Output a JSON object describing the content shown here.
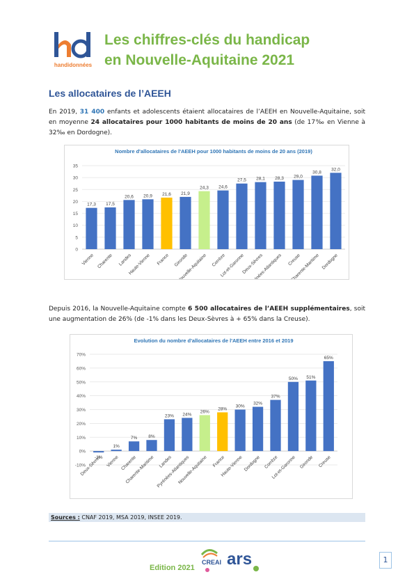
{
  "header": {
    "logo_text": "handidonnées",
    "title_lines": [
      "Les chiffres-clés du handicap",
      "en Nouvelle-Aquitaine 2021"
    ]
  },
  "section": {
    "heading": "Les allocataires de l’AEEH"
  },
  "paragraphs": [
    [
      "En 2019, ",
      "31 400",
      " enfants et adolescents étaient allocataires de l’AEEH en Nouvelle-Aquitaine, soit en moyenne ",
      "24 allocataires pour 1000 habitants de moins de 20 ans",
      " (de 17‰ en Vienne à 32‰ en Dordogne)."
    ],
    [
      "Depuis 2016, la Nouvelle-Aquitaine compte ",
      "6 500 allocataires de l’AEEH supplémentaires",
      ", soit une augmentation de 26% (de -1% dans les Deux-Sèvres à + 65% dans la Creuse)."
    ]
  ],
  "charts": [
    {
      "type": "bar",
      "title": "Nombre d'allocataires de l'AEEH pour 1000 habitants de moins de 20 ans (2019)",
      "categories": [
        "Vienne",
        "Charente",
        "Landes",
        "Haute-Vienne",
        "France",
        "Gironde",
        "Nouvelle-Aquitaine",
        "Corrèze",
        "Lot-et-Garonne",
        "Deux-Sèvres",
        "Pyrénées-Atlantiques",
        "Creuse",
        "Charente-Maritime",
        "Dordogne"
      ],
      "values": [
        17.3,
        17.5,
        20.6,
        20.9,
        21.6,
        21.9,
        24.3,
        24.6,
        27.5,
        28.1,
        28.3,
        29.0,
        30.8,
        32.0
      ],
      "value_labels": [
        "17,3",
        "17,5",
        "20,6",
        "20,9",
        "21,6",
        "21,9",
        "24,3",
        "24,6",
        "27,5",
        "28,1",
        "28,3",
        "29,0",
        "30,8",
        "32,0"
      ],
      "colors": [
        "#4472c4",
        "#4472c4",
        "#4472c4",
        "#4472c4",
        "#ffc000",
        "#4472c4",
        "#c6ef8c",
        "#4472c4",
        "#4472c4",
        "#4472c4",
        "#4472c4",
        "#4472c4",
        "#4472c4",
        "#4472c4"
      ],
      "ylim": [
        0,
        35
      ],
      "yticks": [
        0,
        5,
        10,
        15,
        20,
        25,
        30,
        35
      ],
      "grid": true
    },
    {
      "type": "bar",
      "title": "Evolution du nombre d'allocataires de l'AEEH entre 2016 et 2019",
      "categories": [
        "Deux-Sèvres",
        "Vienne",
        "Charente",
        "Charente-Maritime",
        "Landes",
        "Pyrénées-Atlantiques",
        "Nouvelle-Aquitaine",
        "France",
        "Haute-Vienne",
        "Dordogne",
        "Corrèze",
        "Lot-et-Garonne",
        "Gironde",
        "Creuse"
      ],
      "values": [
        -1,
        1,
        7,
        8,
        23,
        24,
        26,
        28,
        30,
        32,
        37,
        50,
        51,
        65
      ],
      "value_labels": [
        "-1%",
        "1%",
        "7%",
        "8%",
        "23%",
        "24%",
        "26%",
        "28%",
        "30%",
        "32%",
        "37%",
        "50%",
        "51%",
        "65%"
      ],
      "colors": [
        "#4472c4",
        "#4472c4",
        "#4472c4",
        "#4472c4",
        "#4472c4",
        "#4472c4",
        "#c6ef8c",
        "#ffc000",
        "#4472c4",
        "#4472c4",
        "#4472c4",
        "#4472c4",
        "#4472c4",
        "#4472c4"
      ],
      "ylim": [
        -10,
        70
      ],
      "yticks": [
        {
          "value": -10,
          "label": "-10%"
        },
        {
          "value": 0,
          "label": "0%"
        },
        {
          "value": 10,
          "label": "10%"
        },
        {
          "value": 20,
          "label": "20%"
        },
        {
          "value": 30,
          "label": "30%"
        },
        {
          "value": 40,
          "label": "40%"
        },
        {
          "value": 50,
          "label": "50%"
        },
        {
          "value": 60,
          "label": "60%"
        },
        {
          "value": 70,
          "label": "70%"
        }
      ],
      "grid": true
    }
  ],
  "sources": {
    "label": "Sources :",
    "text": " CNAF 2019, MSA 2019, INSEE 2019."
  },
  "footer": {
    "edition": "Edition 2021",
    "logo_texts": [
      "CREAI",
      "ars"
    ],
    "page": "1"
  }
}
